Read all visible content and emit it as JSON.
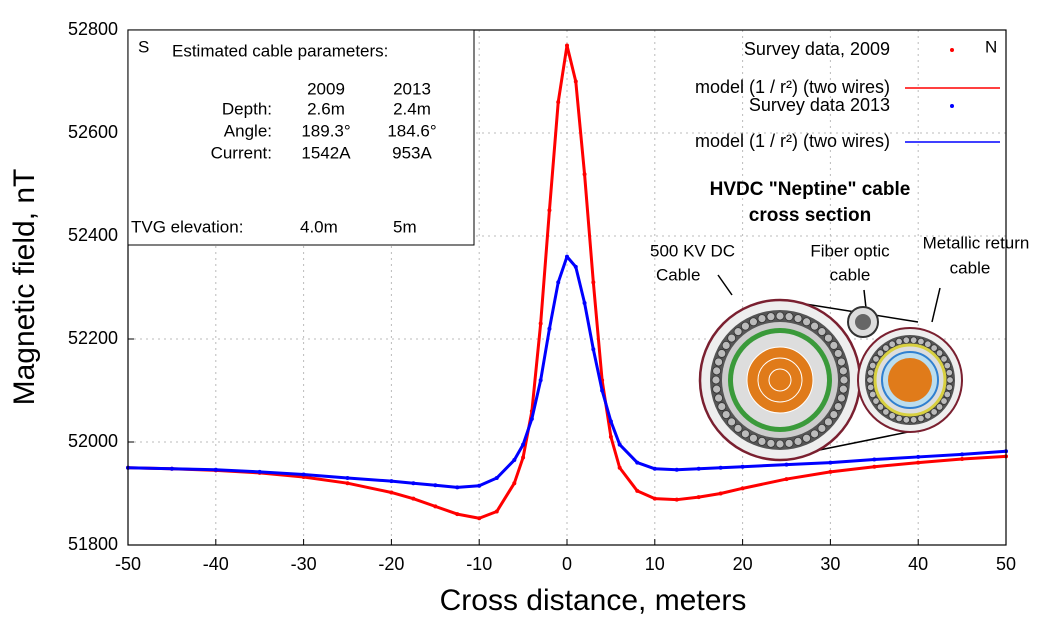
{
  "chart_data": {
    "type": "line",
    "x_label": "Cross distance, meters",
    "y_label": "Magnetic field, nT",
    "xlim": [
      -50,
      50
    ],
    "ylim": [
      51800,
      52800
    ],
    "xticks": [
      -50,
      -40,
      -30,
      -20,
      -10,
      0,
      10,
      20,
      30,
      40,
      50
    ],
    "yticks": [
      51800,
      52000,
      52200,
      52400,
      52600,
      52800
    ],
    "grid": true,
    "x": [
      -50,
      -45,
      -40,
      -35,
      -30,
      -25,
      -20,
      -17.5,
      -15,
      -12.5,
      -10,
      -8,
      -6,
      -5,
      -4,
      -3,
      -2,
      -1,
      0,
      1,
      2,
      3,
      4,
      5,
      6,
      8,
      10,
      12.5,
      15,
      17.5,
      20,
      25,
      30,
      35,
      40,
      45,
      50
    ],
    "series": [
      {
        "name": "Survey data, 2009",
        "style": "points",
        "color": "#ff0000",
        "values": [
          51950,
          51948,
          51945,
          51940,
          51932,
          51920,
          51902,
          51890,
          51875,
          51860,
          51852,
          51865,
          51920,
          51970,
          52060,
          52230,
          52450,
          52660,
          52770,
          52700,
          52520,
          52310,
          52120,
          52010,
          51950,
          51905,
          51890,
          51888,
          51893,
          51900,
          51910,
          51928,
          51942,
          51952,
          51960,
          51967,
          51972
        ]
      },
      {
        "name": "model (1 / r²) (two wires)",
        "style": "line",
        "color": "#ff0000",
        "values": [
          51950,
          51948,
          51945,
          51940,
          51932,
          51920,
          51902,
          51890,
          51875,
          51860,
          51852,
          51865,
          51920,
          51970,
          52060,
          52230,
          52450,
          52660,
          52770,
          52700,
          52520,
          52310,
          52120,
          52010,
          51950,
          51905,
          51890,
          51888,
          51893,
          51900,
          51910,
          51928,
          51942,
          51952,
          51960,
          51967,
          51972
        ]
      },
      {
        "name": "Survey data 2013",
        "style": "points",
        "color": "#0000ff",
        "values": [
          51950,
          51948,
          51946,
          51942,
          51937,
          51930,
          51924,
          51920,
          51916,
          51912,
          51915,
          51930,
          51965,
          51995,
          52045,
          52120,
          52220,
          52310,
          52360,
          52340,
          52270,
          52180,
          52100,
          52040,
          51995,
          51960,
          51948,
          51946,
          51948,
          51950,
          51952,
          51956,
          51960,
          51966,
          51971,
          51976,
          51982
        ]
      },
      {
        "name": "model (1 / r²) (two wires)",
        "style": "line",
        "color": "#0000ff",
        "values": [
          51950,
          51948,
          51946,
          51942,
          51937,
          51930,
          51924,
          51920,
          51916,
          51912,
          51915,
          51930,
          51965,
          51995,
          52045,
          52120,
          52220,
          52310,
          52360,
          52340,
          52270,
          52180,
          52100,
          52040,
          51995,
          51960,
          51948,
          51946,
          51948,
          51950,
          51952,
          51956,
          51960,
          51966,
          51971,
          51976,
          51982
        ]
      }
    ],
    "annotations": {
      "south": "S",
      "north": "N",
      "box_title": "Estimated cable parameters:",
      "years": [
        "2009",
        "2013"
      ],
      "rows": [
        [
          "Depth:",
          "2.6m",
          "2.4m"
        ],
        [
          "Angle:",
          "189.3°",
          "184.6°"
        ],
        [
          "Current:",
          "1542A",
          "953A"
        ]
      ],
      "tvg": [
        "TVG elevation:",
        "4.0m",
        "5m"
      ],
      "inset_title": [
        "HVDC \"Neptine\" cable",
        "cross section"
      ],
      "inset_labels": [
        [
          "500 KV DC",
          "Cable"
        ],
        [
          "Fiber optic",
          "cable"
        ],
        [
          "Metallic return",
          "cable"
        ]
      ]
    }
  }
}
